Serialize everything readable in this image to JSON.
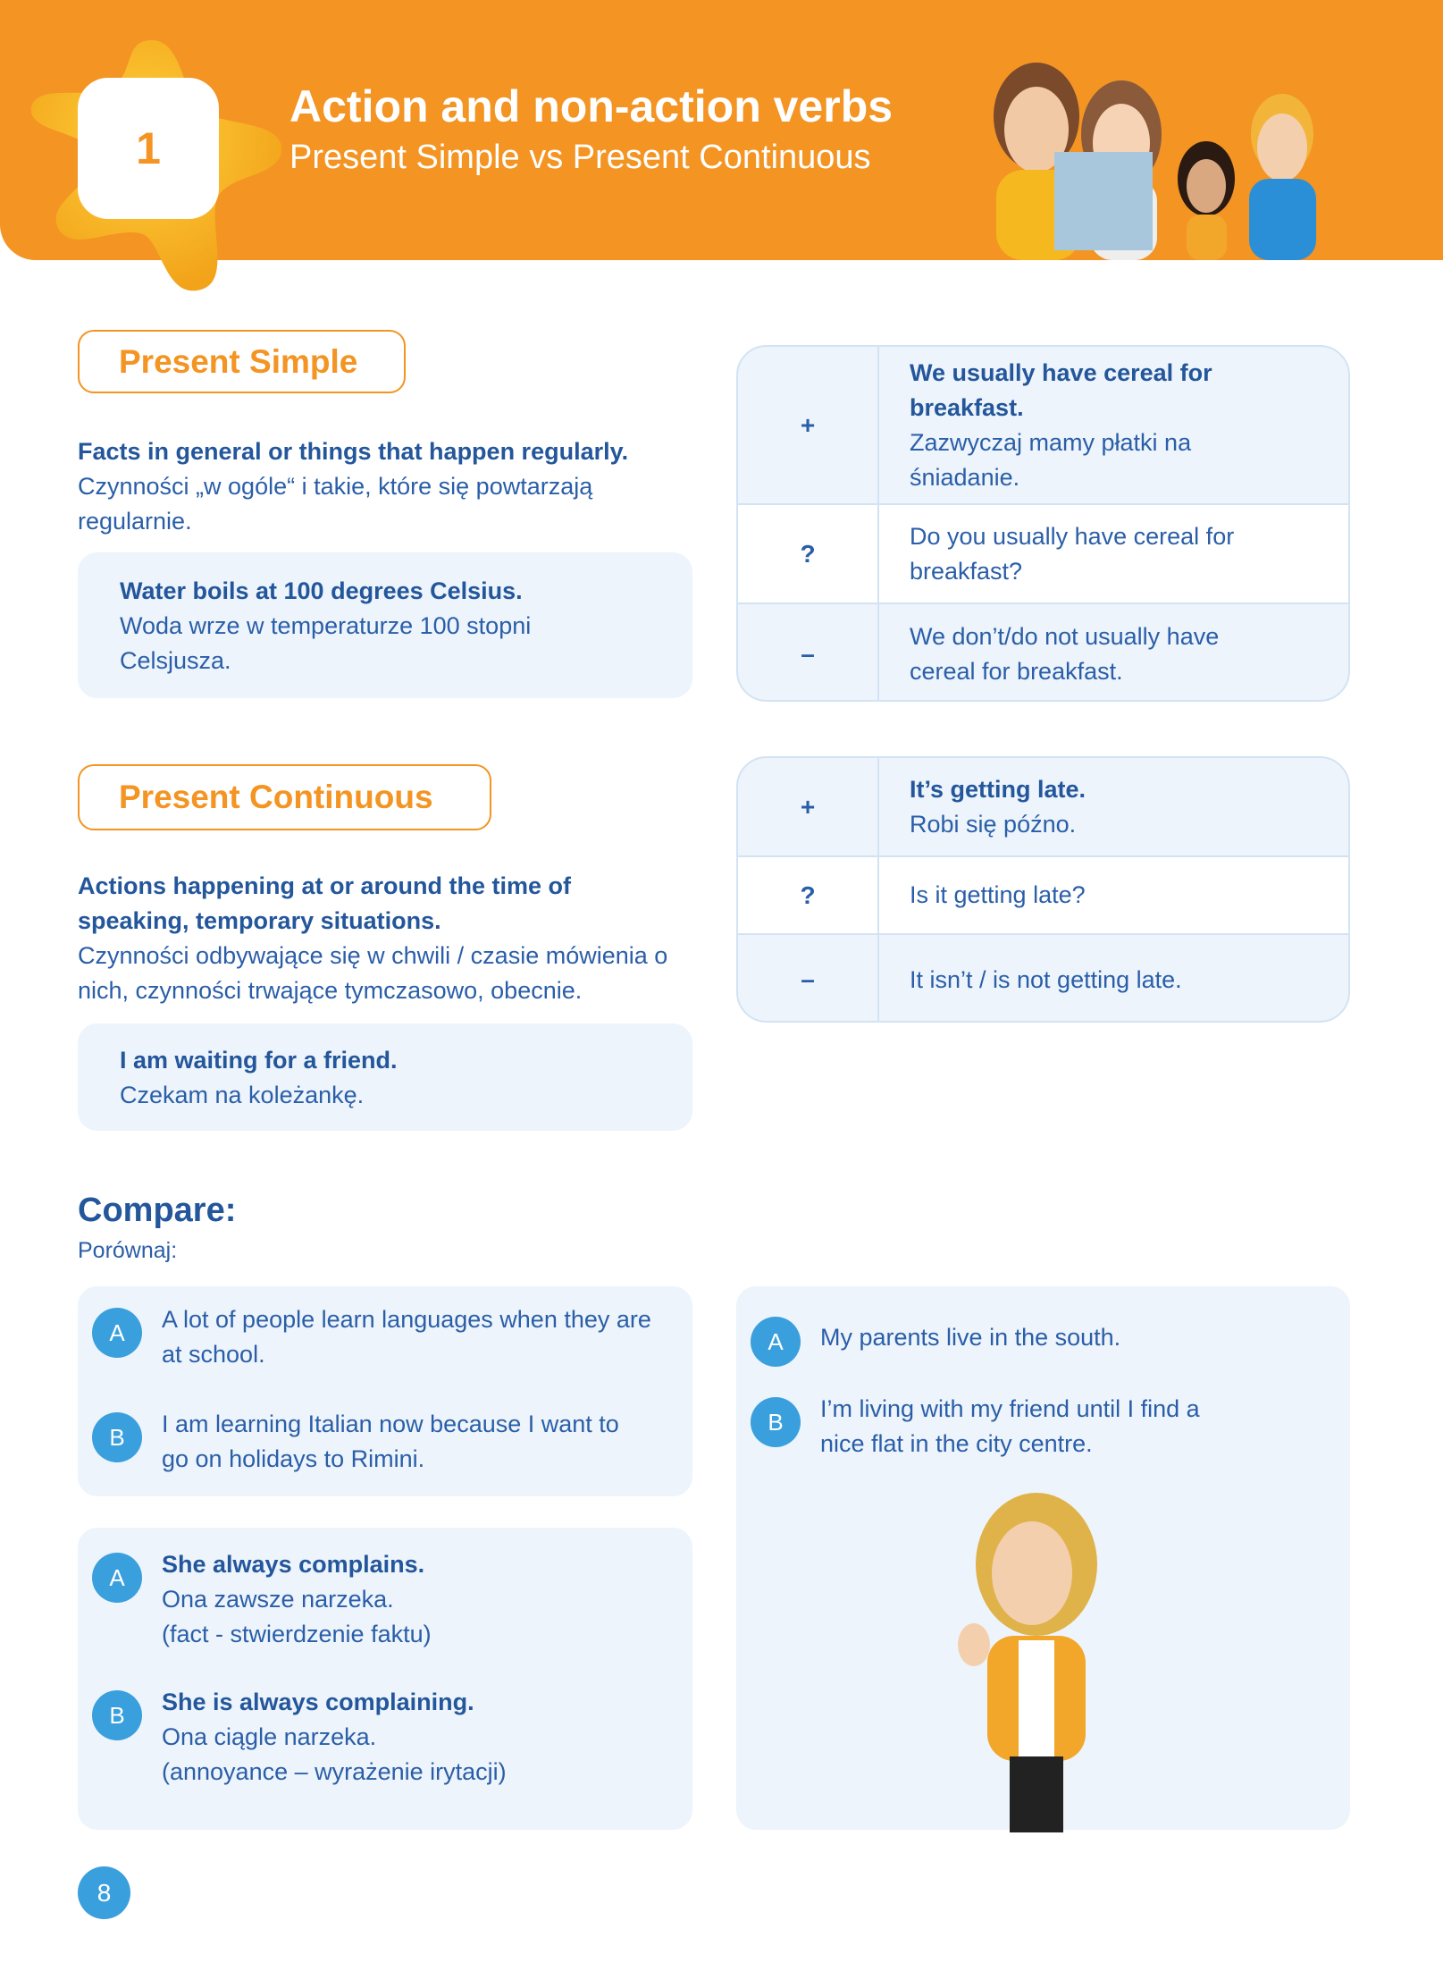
{
  "header": {
    "unit_number": "1",
    "title": "Action and non-action verbs",
    "subtitle": "Present Simple vs Present Continuous",
    "accent_color": "#f39423"
  },
  "present_simple": {
    "label": "Present Simple",
    "desc_en": "Facts in general or things that happen regularly.",
    "desc_pl": "Czynności „w ogóle“ i takie, które się powtarzają regularnie.",
    "example_en": "Water boils at 100 degrees Celsius.",
    "example_pl": "Woda wrze w temperaturze 100 stopni Celsjusza.",
    "table": [
      {
        "symbol": "+",
        "en": "We usually have cereal for breakfast.",
        "pl": "Zazwyczaj mamy płatki na śniadanie."
      },
      {
        "symbol": "?",
        "en": "",
        "pl": "Do you usually have cereal for breakfast?"
      },
      {
        "symbol": "–",
        "en": "",
        "pl": "We don’t/do not usually have cereal for breakfast."
      }
    ]
  },
  "present_continuous": {
    "label": "Present Continuous",
    "desc_en": "Actions happening at or around the time of speaking, temporary situations.",
    "desc_pl": "Czynności odbywające się w chwili / czasie mówienia o nich, czynności trwające tymczasowo, obecnie.",
    "example_en": "I am waiting for a friend.",
    "example_pl": "Czekam na koleżankę.",
    "table": [
      {
        "symbol": "+",
        "en": "It’s getting late.",
        "pl": "Robi się późno."
      },
      {
        "symbol": "?",
        "en": "",
        "pl": "Is it getting late?"
      },
      {
        "symbol": "–",
        "en": "",
        "pl": "It isn’t / is not getting late."
      }
    ]
  },
  "compare": {
    "title": "Compare:",
    "subtitle": "Porównaj:",
    "box1": [
      {
        "letter": "A",
        "text": "A lot of people learn languages when they are at school."
      },
      {
        "letter": "B",
        "text": "I am learning Italian now because I want to go on holidays to Rimini."
      }
    ],
    "box2": [
      {
        "letter": "A",
        "en": "She always complains.",
        "pl": "Ona zawsze narzeka.",
        "note": "(fact - stwierdzenie faktu)"
      },
      {
        "letter": "B",
        "en": "She is always complaining.",
        "pl": "Ona ciągle narzeka.",
        "note": "(annoyance – wyrażenie irytacji)"
      }
    ],
    "box3": [
      {
        "letter": "A",
        "text": "My parents live in the south."
      },
      {
        "letter": "B",
        "text": "I’m living with my friend until I find a nice flat in the city centre."
      }
    ]
  },
  "page_number": "8"
}
